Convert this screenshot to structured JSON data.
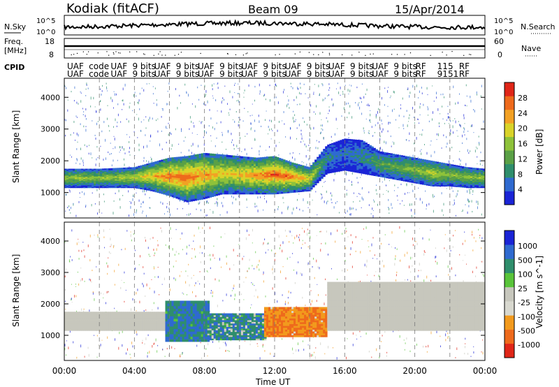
{
  "header": {
    "radar": "Kodiak (fitACF)",
    "beam": "Beam 09",
    "date": "15/Apr/2014"
  },
  "top_panels": {
    "nsky": {
      "label": "N.Sky",
      "ticks": [
        "10^5",
        "10^0"
      ],
      "right_label": "N.Search",
      "right_ticks": [
        "10^5",
        "10^0"
      ]
    },
    "freq": {
      "label": "Freq.",
      "unit": "[MHz]",
      "ticks": [
        "18",
        "8"
      ],
      "right_label": "Nave",
      "right_ticks": [
        "60",
        "0"
      ]
    },
    "cpid": {
      "label": "CPID",
      "row1": [
        "UAF",
        "code",
        "UAF",
        "9 bits",
        "UAF",
        "9 bits",
        "UAF",
        "9 bits",
        "UAF",
        "9 bits",
        "UAF",
        "9 bits",
        "UAF",
        "9 bits",
        "UAF",
        "9 bits",
        "RF",
        "115",
        "RF"
      ],
      "row2": [
        "UAF",
        "code",
        "UAF",
        "9 bits",
        "UAF",
        "9 bits",
        "UAF",
        "9 bits",
        "UAF",
        "9 bits",
        "UAF",
        "9 bits",
        "UAF",
        "9 bits",
        "UAF",
        "9 bits",
        "RF",
        "9151",
        "RF"
      ]
    }
  },
  "chart_data": [
    {
      "type": "heatmap",
      "name": "power",
      "ylabel": "Slant Range [km]",
      "ylim": [
        200,
        4600
      ],
      "yticks": [
        1000,
        2000,
        3000,
        4000
      ],
      "xlim_hours": [
        0,
        24
      ],
      "colorbar": {
        "label": "Power [dB]",
        "ticks": [
          4,
          8,
          12,
          16,
          20,
          24,
          28
        ],
        "range": [
          0,
          32
        ],
        "colors": [
          "#1a24d6",
          "#2f6ad0",
          "#2f8e6c",
          "#5aa046",
          "#8ec23a",
          "#d9d329",
          "#f2a124",
          "#ee6a1c",
          "#e02618"
        ]
      },
      "scatter_band": {
        "hours": [
          0,
          2,
          4,
          5,
          6,
          7,
          8,
          9,
          10,
          11,
          12,
          13,
          14,
          15,
          16,
          17,
          18,
          19,
          20,
          21,
          22,
          23,
          24
        ],
        "lower_km": [
          1150,
          1150,
          1150,
          1050,
          900,
          700,
          800,
          950,
          950,
          950,
          950,
          1000,
          1050,
          1600,
          1700,
          1600,
          1500,
          1400,
          1300,
          1200,
          1200,
          1150,
          1150
        ],
        "upper_km": [
          1750,
          1750,
          1800,
          1950,
          2100,
          2150,
          2250,
          2200,
          2150,
          2100,
          2150,
          1950,
          1800,
          2500,
          2700,
          2650,
          2300,
          2200,
          2100,
          2000,
          1900,
          1800,
          1750
        ],
        "peak_db": [
          16,
          16,
          18,
          22,
          26,
          28,
          24,
          22,
          22,
          24,
          28,
          26,
          20,
          8,
          6,
          8,
          12,
          14,
          16,
          18,
          16,
          16,
          16
        ]
      }
    },
    {
      "type": "heatmap",
      "name": "velocity",
      "ylabel": "Slant Range [km]",
      "ylim": [
        200,
        4600
      ],
      "yticks": [
        1000,
        2000,
        3000,
        4000
      ],
      "xlim_hours": [
        0,
        24
      ],
      "colorbar": {
        "label": "Velocity [m s^-1]",
        "ticks": [
          "1000",
          "500",
          "100",
          "25",
          "-25",
          "-100",
          "-500",
          "-1000"
        ],
        "colors": [
          "#1a24d6",
          "#2f6ad0",
          "#2f8e6c",
          "#59c43a",
          "#c7c7bd",
          "#d8d8cf",
          "#f29a1d",
          "#ee6a1c",
          "#e02618"
        ]
      },
      "segments": [
        {
          "from_h": 0,
          "to_h": 5.8,
          "lower_km": 1150,
          "upper_km": 1750,
          "velocity": 0
        },
        {
          "from_h": 5.8,
          "to_h": 8.2,
          "lower_km": 800,
          "upper_km": 2100,
          "velocity": 300
        },
        {
          "from_h": 8.2,
          "to_h": 11.5,
          "lower_km": 850,
          "upper_km": 1700,
          "velocity": 200
        },
        {
          "from_h": 11.5,
          "to_h": 15.0,
          "lower_km": 950,
          "upper_km": 1900,
          "velocity": -300
        },
        {
          "from_h": 15.0,
          "to_h": 24,
          "lower_km": 1150,
          "upper_km": 2700,
          "velocity": 0
        }
      ]
    }
  ],
  "x_axis": {
    "label": "Time UT",
    "ticks": [
      "00:00",
      "04:00",
      "08:00",
      "12:00",
      "16:00",
      "20:00",
      "00:00"
    ]
  }
}
